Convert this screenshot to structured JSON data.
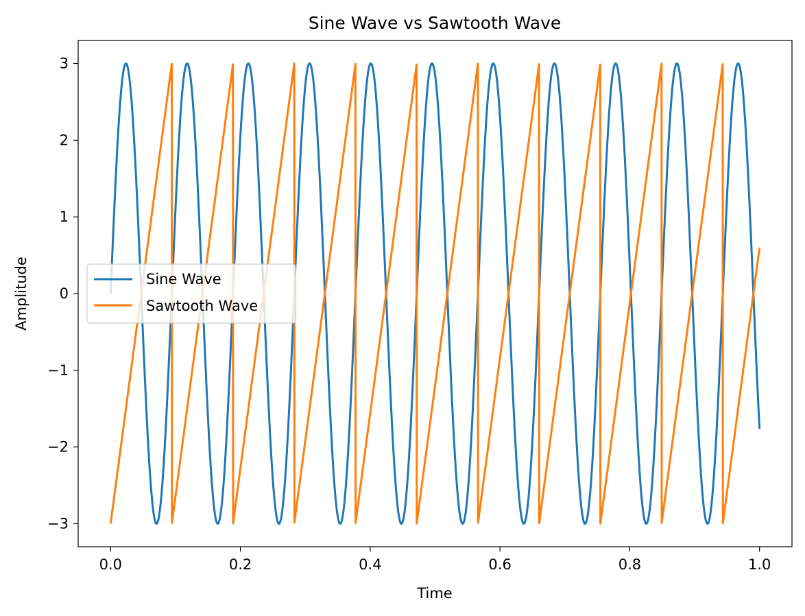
{
  "chart_data": {
    "type": "line",
    "title": "Sine Wave vs Sawtooth Wave",
    "xlabel": "Time",
    "ylabel": "Amplitude",
    "xlim": [
      -0.05,
      1.05
    ],
    "ylim": [
      -3.3,
      3.3
    ],
    "xticks": [
      0.0,
      0.2,
      0.4,
      0.6,
      0.8,
      1.0
    ],
    "xtick_labels": [
      "0.0",
      "0.2",
      "0.4",
      "0.6",
      "0.8",
      "1.0"
    ],
    "yticks": [
      -3,
      -2,
      -1,
      0,
      1,
      2,
      3
    ],
    "ytick_labels": [
      "−3",
      "−2",
      "−1",
      "0",
      "1",
      "2",
      "3"
    ],
    "grid": false,
    "legend_position": "center-left",
    "series": [
      {
        "name": "Sine Wave",
        "color": "#1f77b4",
        "function": "sine",
        "amplitude": 3,
        "frequency": 10.6,
        "x_range": [
          0,
          1
        ]
      },
      {
        "name": "Sawtooth Wave",
        "color": "#ff7f0e",
        "function": "sawtooth",
        "amplitude": 3,
        "frequency": 10.6,
        "x_range": [
          0,
          1
        ]
      }
    ]
  }
}
